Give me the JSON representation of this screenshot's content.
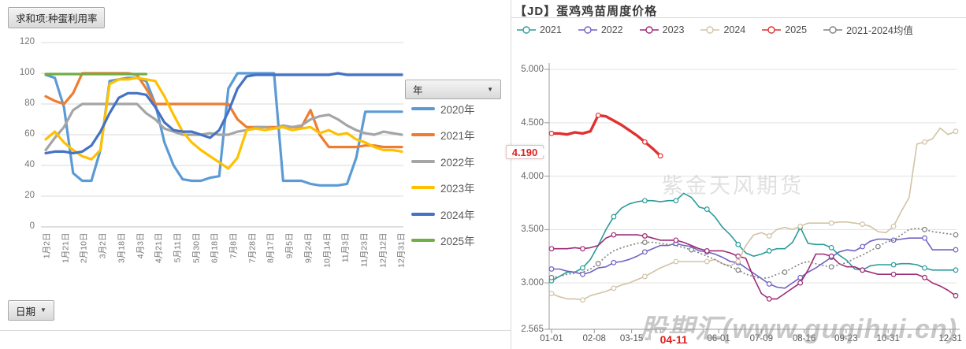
{
  "chart_data": [
    {
      "type": "line",
      "title": "求和项:种蛋利用率",
      "legend_title": "年",
      "axis_field": "日期",
      "legend_position": "right",
      "grid": true,
      "ylim": [
        0,
        120
      ],
      "y_ticks": [
        120,
        100,
        80,
        60,
        40,
        20,
        0
      ],
      "categories": [
        "1月2日",
        "1月21日",
        "2月10日",
        "3月2日",
        "3月18日",
        "4月3日",
        "4月21日",
        "5月11日",
        "5月30日",
        "6月18日",
        "7月8日",
        "7月28日",
        "8月17日",
        "9月5日",
        "9月24日",
        "10月14日",
        "11月3日",
        "11月23日",
        "12月12日",
        "12月31日"
      ],
      "series": [
        {
          "name": "2020年",
          "color": "#5B9BD5",
          "values": [
            99,
            97,
            78,
            35,
            30,
            30,
            50,
            95,
            96,
            97,
            97,
            95,
            80,
            55,
            40,
            31,
            30,
            30,
            32,
            33,
            90,
            100,
            100,
            100,
            100,
            100,
            30,
            30,
            30,
            28,
            27,
            27,
            27,
            28,
            45,
            75,
            75,
            75,
            75,
            75
          ]
        },
        {
          "name": "2021年",
          "color": "#ED7D31",
          "values": [
            85,
            82,
            80,
            87,
            100,
            100,
            100,
            100,
            100,
            100,
            99,
            90,
            80,
            80,
            80,
            80,
            80,
            80,
            80,
            80,
            80,
            70,
            65,
            65,
            65,
            65,
            65,
            65,
            65,
            76,
            60,
            52,
            52,
            52,
            52,
            53,
            53,
            52,
            52,
            52
          ]
        },
        {
          "name": "2022年",
          "color": "#A5A5A5",
          "values": [
            50,
            58,
            65,
            76,
            80,
            80,
            80,
            80,
            80,
            80,
            80,
            74,
            70,
            64,
            62,
            60,
            60,
            60,
            61,
            60,
            60,
            62,
            63,
            65,
            65,
            64,
            66,
            65,
            66,
            70,
            72,
            73,
            70,
            66,
            63,
            61,
            60,
            62,
            61,
            60
          ]
        },
        {
          "name": "2023年",
          "color": "#FFC000",
          "values": [
            57,
            62,
            55,
            50,
            46,
            44,
            50,
            93,
            96,
            96,
            97,
            96,
            95,
            85,
            73,
            62,
            55,
            50,
            46,
            42,
            38,
            45,
            63,
            64,
            63,
            64,
            65,
            63,
            64,
            65,
            61,
            63,
            60,
            61,
            57,
            55,
            52,
            50,
            50,
            49
          ]
        },
        {
          "name": "2024年",
          "color": "#4472C4",
          "values": [
            48,
            49,
            49,
            48,
            49,
            53,
            62,
            74,
            84,
            87,
            87,
            86,
            78,
            68,
            63,
            62,
            62,
            60,
            58,
            63,
            75,
            90,
            98,
            99,
            99,
            99,
            99,
            99,
            99,
            99,
            99,
            99,
            100,
            99,
            99,
            99,
            99,
            99,
            99,
            99
          ]
        },
        {
          "name": "2025年",
          "color": "#70AD47",
          "values": [
            99.5,
            99.5,
            99.5,
            99.5,
            99.5,
            99.5,
            99.5,
            99.5,
            99.5,
            99.5,
            99.5,
            99.5,
            null,
            null,
            null,
            null,
            null,
            null,
            null,
            null,
            null,
            null,
            null,
            null,
            null,
            null,
            null,
            null,
            null,
            null,
            null,
            null,
            null,
            null,
            null,
            null,
            null,
            null,
            null,
            null
          ]
        }
      ]
    },
    {
      "type": "line",
      "title": "【JD】蛋鸡鸡苗周度价格",
      "ylim": [
        2.565,
        5.0
      ],
      "y_ticks": [
        "5.000",
        "4.500",
        "4.000",
        "3.500",
        "3.000",
        "2.565"
      ],
      "grid": true,
      "legend_position": "top",
      "current_value": "4.190",
      "current_date": "04-11",
      "watermarks": [
        "紫金天风期货",
        "股期汇(www.guqihui.cn)"
      ],
      "x_tick_labels": [
        {
          "text": "01-01"
        },
        {
          "text": "02-08"
        },
        {
          "text": "03-15",
          "partially_hidden": true
        },
        {
          "text": "04-11",
          "highlight": true
        },
        {
          "text": "06-01"
        },
        {
          "text": "07-09"
        },
        {
          "text": "08-16"
        },
        {
          "text": "09-23"
        },
        {
          "text": "10-31"
        },
        {
          "text": "12-31"
        }
      ],
      "series": [
        {
          "name": "2021",
          "color": "#2D9B9B",
          "dashed": false,
          "values": [
            3.02,
            3.06,
            3.1,
            3.1,
            3.14,
            3.22,
            3.35,
            3.5,
            3.62,
            3.7,
            3.74,
            3.76,
            3.77,
            3.77,
            3.76,
            3.77,
            3.77,
            3.84,
            3.8,
            3.71,
            3.69,
            3.62,
            3.52,
            3.45,
            3.36,
            3.28,
            3.25,
            3.27,
            3.3,
            3.32,
            3.32,
            3.38,
            3.52,
            3.37,
            3.36,
            3.36,
            3.33,
            3.26,
            3.21,
            3.13,
            3.12,
            3.16,
            3.17,
            3.17,
            3.17,
            3.18,
            3.18,
            3.17,
            3.14,
            3.12,
            3.12,
            3.12,
            3.12
          ]
        },
        {
          "name": "2022",
          "color": "#6F63C5",
          "dashed": false,
          "values": [
            3.13,
            3.13,
            3.11,
            3.1,
            3.08,
            3.1,
            3.14,
            3.15,
            3.19,
            3.2,
            3.22,
            3.25,
            3.29,
            3.32,
            3.35,
            3.35,
            3.37,
            3.35,
            3.34,
            3.3,
            3.29,
            3.27,
            3.24,
            3.2,
            3.19,
            3.14,
            3.09,
            3.04,
            2.99,
            2.96,
            2.95,
            3.0,
            3.05,
            3.1,
            3.14,
            3.19,
            3.24,
            3.29,
            3.31,
            3.3,
            3.34,
            3.39,
            3.41,
            3.41,
            3.4,
            3.41,
            3.42,
            3.42,
            3.42,
            3.31,
            3.31,
            3.31,
            3.31
          ]
        },
        {
          "name": "2023",
          "color": "#9E2B76",
          "dashed": false,
          "values": [
            3.32,
            3.32,
            3.32,
            3.33,
            3.32,
            3.33,
            3.35,
            3.42,
            3.45,
            3.45,
            3.45,
            3.45,
            3.44,
            3.42,
            3.4,
            3.4,
            3.4,
            3.38,
            3.35,
            3.32,
            3.3,
            3.3,
            3.3,
            3.28,
            3.25,
            3.23,
            3.05,
            2.9,
            2.85,
            2.85,
            2.9,
            2.95,
            3.0,
            3.12,
            3.27,
            3.27,
            3.25,
            3.18,
            3.15,
            3.15,
            3.12,
            3.1,
            3.08,
            3.08,
            3.08,
            3.08,
            3.08,
            3.08,
            3.05,
            3.0,
            2.97,
            2.93,
            2.88
          ]
        },
        {
          "name": "2024",
          "color": "#D2C3A5",
          "dashed": false,
          "values": [
            2.9,
            2.87,
            2.85,
            2.85,
            2.84,
            2.88,
            2.9,
            2.92,
            2.95,
            2.98,
            3.0,
            3.03,
            3.06,
            3.1,
            3.14,
            3.17,
            3.2,
            3.2,
            3.2,
            3.2,
            3.2,
            3.22,
            3.18,
            3.16,
            3.2,
            3.35,
            3.45,
            3.47,
            3.44,
            3.5,
            3.52,
            3.5,
            3.53,
            3.56,
            3.56,
            3.56,
            3.56,
            3.57,
            3.57,
            3.56,
            3.55,
            3.53,
            3.48,
            3.47,
            3.53,
            3.67,
            3.8,
            4.3,
            4.32,
            4.35,
            4.45,
            4.39,
            4.42
          ]
        },
        {
          "name": "2025",
          "color": "#E03030",
          "dashed": false,
          "bold": true,
          "values": [
            4.4,
            4.4,
            4.39,
            4.41,
            4.4,
            4.42,
            4.57,
            4.56,
            4.52,
            4.48,
            4.43,
            4.38,
            4.32,
            4.26,
            4.19
          ]
        },
        {
          "name": "2021-2024均值",
          "color": "#808080",
          "dashed": true,
          "values": [
            3.05,
            3.06,
            3.08,
            3.09,
            3.1,
            3.13,
            3.18,
            3.25,
            3.3,
            3.33,
            3.35,
            3.37,
            3.38,
            3.38,
            3.37,
            3.36,
            3.35,
            3.33,
            3.31,
            3.28,
            3.25,
            3.22,
            3.18,
            3.15,
            3.12,
            3.08,
            3.06,
            3.04,
            3.05,
            3.08,
            3.1,
            3.14,
            3.18,
            3.2,
            3.18,
            3.16,
            3.15,
            3.17,
            3.19,
            3.23,
            3.26,
            3.3,
            3.34,
            3.38,
            3.4,
            3.45,
            3.5,
            3.51,
            3.5,
            3.48,
            3.47,
            3.46,
            3.45
          ]
        }
      ]
    }
  ]
}
